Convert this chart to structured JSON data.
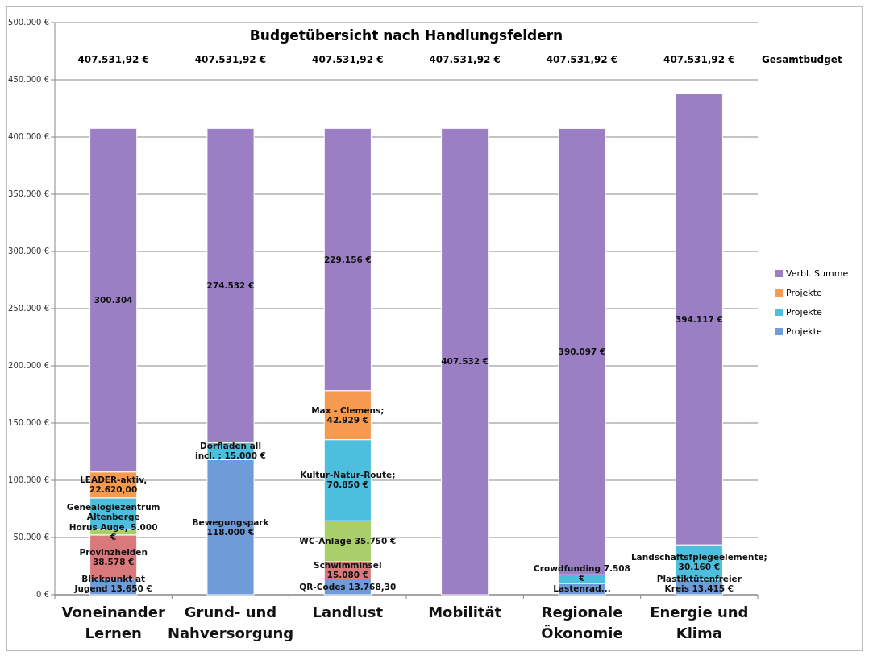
{
  "chart_data": {
    "type": "bar",
    "stacked": true,
    "title": "Budgetübersicht nach Handlungsfeldern",
    "categories": [
      "Voneinander Lernen",
      "Grund- und Nahversorgung",
      "Landlust",
      "Mobilität",
      "Regionale Ökonomie",
      "Energie und Klima"
    ],
    "series": [
      {
        "name": "Projekte",
        "color": "#6f9bd8",
        "values": [
          13650,
          118000,
          13768.3,
          null,
          9900,
          13415
        ],
        "value_labels": [
          "Blickpunkt at Jugend 13.650 €",
          "Bewegungspark 118.000 €",
          "QR-Codes 13.768,30",
          null,
          "Lastenrad...",
          "Plastiktütenfreier Kreis 13.415 €"
        ]
      },
      {
        "color": "#d9797b",
        "values": [
          38578,
          null,
          15080,
          null,
          null,
          null
        ],
        "value_labels": [
          "Provinzhelden 38.578 €",
          null,
          "Schwimminsel 15.080 €",
          null,
          null,
          null
        ]
      },
      {
        "color": "#a9cf6a",
        "values": [
          5000,
          null,
          35750,
          null,
          null,
          null
        ],
        "value_labels": [
          "Horus Auge, 5.000 €",
          null,
          "WC-Anlage 35.750 €",
          null,
          null,
          null
        ]
      },
      {
        "name": "Projekte",
        "color": "#4cbfdf",
        "values": [
          27400,
          15000,
          70850,
          null,
          7508,
          30160
        ],
        "value_labels": [
          "Genealogiezentrum Altenberge",
          "Dorfladen all incl. ; 15.000 €",
          "Kultur-Natur-Route; 70.850 €",
          null,
          "Crowdfunding 7.508 €",
          "Landschaftsfplegeelemente; 30.160 €"
        ]
      },
      {
        "name": "Projekte",
        "color": "#f59a4e",
        "values": [
          22620,
          null,
          42929,
          null,
          null,
          null
        ],
        "value_labels": [
          "LEADER-aktiv, 22.620,00",
          null,
          "Max - Clemens; 42.929 €",
          null,
          null,
          null
        ]
      },
      {
        "name": "Verbl. Summe",
        "color": "#9b7fc4",
        "values": [
          300304,
          274532,
          229156,
          407532,
          390097,
          394117
        ],
        "value_labels": [
          "300.304",
          "274.532 €",
          "229.156 €",
          "407.532 €",
          "390.097 €",
          "394.117 €"
        ]
      }
    ],
    "annotations": [
      "407.531,92 €",
      "407.531,92 €",
      "407.531,92 €",
      "407.531,92 €",
      "407.531,92 €",
      "407.531,92 €",
      "Gesamtbudget"
    ],
    "ylim": [
      0,
      500000
    ],
    "yticks": [
      {
        "value": 0,
        "label": "0 €"
      },
      {
        "value": 50000,
        "label": "50.000 €"
      },
      {
        "value": 100000,
        "label": "100.000 €"
      },
      {
        "value": 150000,
        "label": "150.000 €"
      },
      {
        "value": 200000,
        "label": "200.000 €"
      },
      {
        "value": 250000,
        "label": "250.000 €"
      },
      {
        "value": 300000,
        "label": "300.000 €"
      },
      {
        "value": 350000,
        "label": "350.000 €"
      },
      {
        "value": 400000,
        "label": "400.000 €"
      },
      {
        "value": 450000,
        "label": "450.000 €"
      },
      {
        "value": 500000,
        "label": "500.000 €"
      }
    ],
    "grid": "y",
    "legend": "right"
  }
}
